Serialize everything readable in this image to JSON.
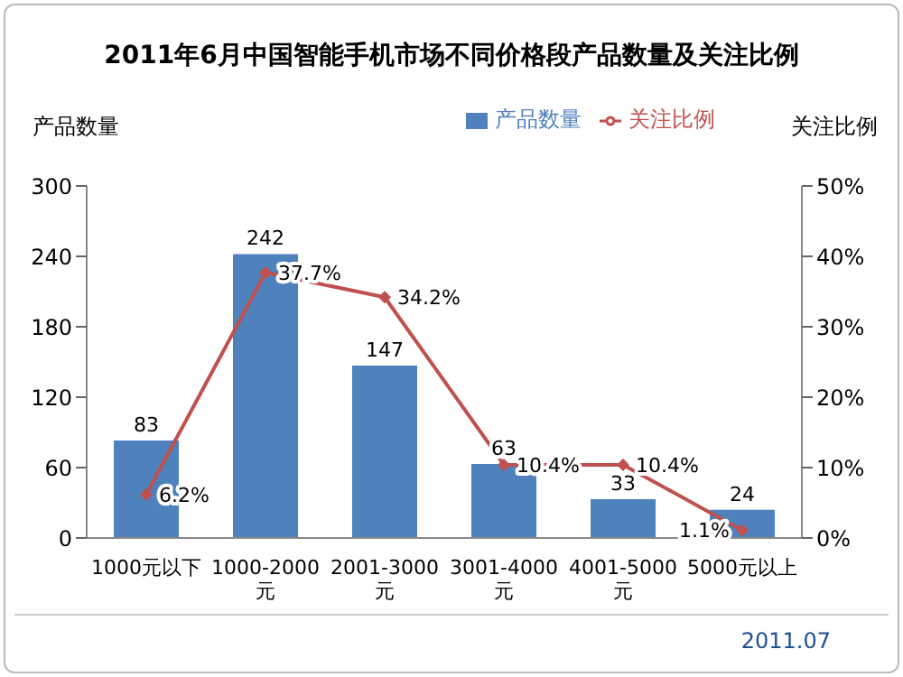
{
  "chart_data": {
    "type": "bar",
    "title": "2011年6月中国智能手机市场不同价格段产品数量及关注比例",
    "ylabel": "产品数量",
    "y2label": "关注比例",
    "categories": [
      "1000元以下",
      "1000-2000元",
      "2001-3000元",
      "3001-4000元",
      "4001-5000元",
      "5000元以上"
    ],
    "series": [
      {
        "name": "产品数量",
        "color": "#4f81bd",
        "values": [
          83,
          242,
          147,
          63,
          33,
          24
        ],
        "value_labels": [
          "83",
          "242",
          "147",
          "63",
          "33",
          "24"
        ]
      },
      {
        "name": "关注比例",
        "type": "line",
        "axis": "y2",
        "color": "#c0504d",
        "values": [
          6.2,
          37.7,
          34.2,
          10.4,
          10.4,
          1.1
        ],
        "value_labels": [
          "6.2%",
          "37.7%",
          "34.2%",
          "10.4%",
          "10.4%",
          "1.1%"
        ],
        "marker": "diamond"
      }
    ],
    "ylim": [
      0,
      300
    ],
    "yticks": [
      0,
      60,
      120,
      180,
      240,
      300
    ],
    "y2lim": [
      0,
      50
    ],
    "y2ticks": [
      {
        "value": 0,
        "label": "0%"
      },
      {
        "value": 10,
        "label": "10%"
      },
      {
        "value": 20,
        "label": "20%"
      },
      {
        "value": 30,
        "label": "30%"
      },
      {
        "value": 40,
        "label": "40%"
      },
      {
        "value": 50,
        "label": "50%"
      }
    ],
    "grid": false,
    "legend": "top right",
    "annotations": [
      "2011.07"
    ]
  }
}
